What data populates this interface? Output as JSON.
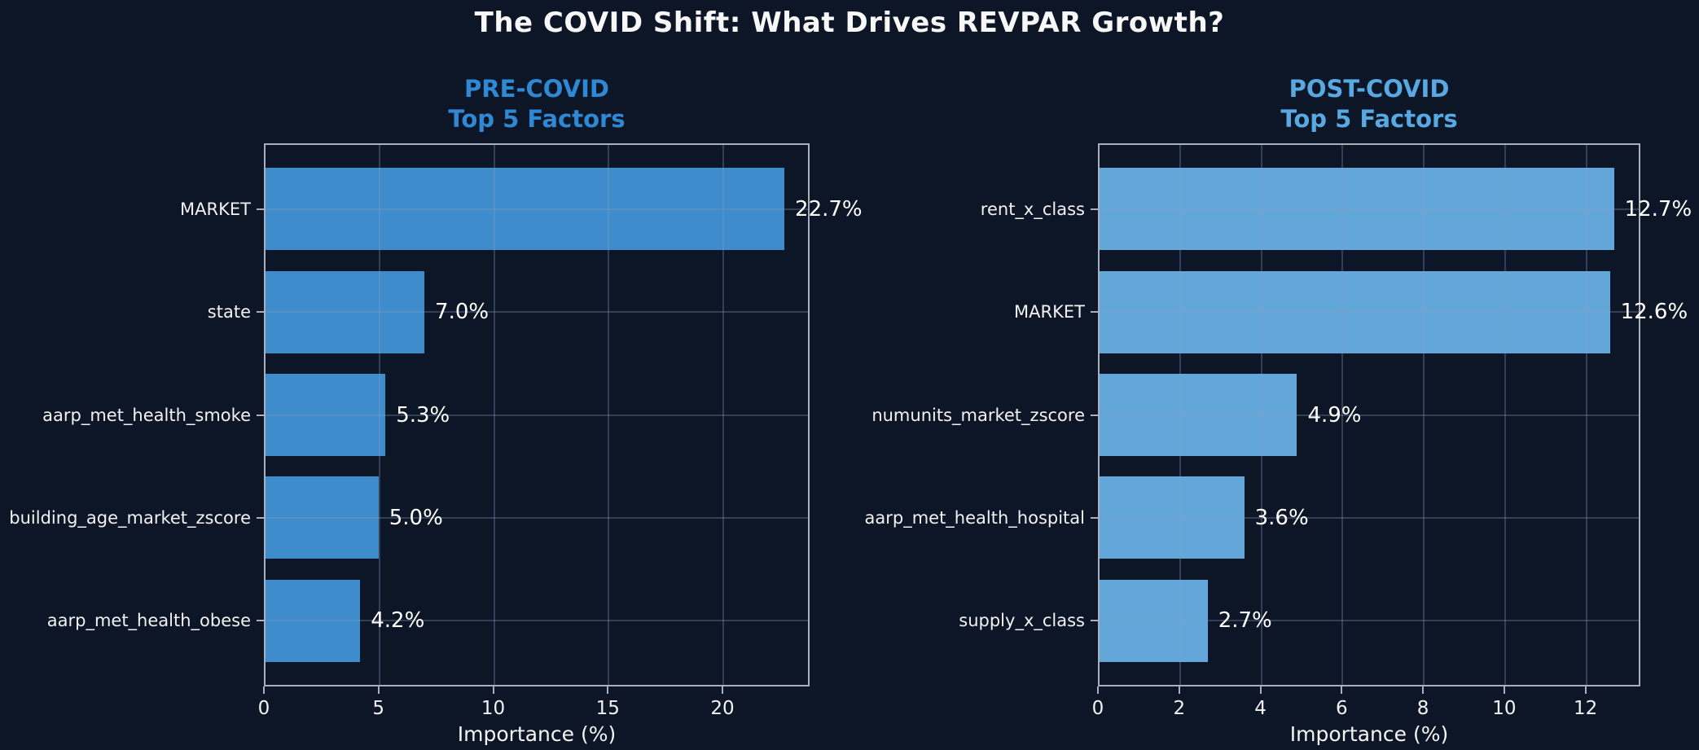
{
  "title": "The COVID Shift: What Drives REVPAR Growth?",
  "colors": {
    "background": "#0d1626",
    "spine": "#a9b0bb",
    "grid": "rgba(135,158,192,0.30)",
    "tick_text": "#f2f2f2",
    "value_text": "#ffffff"
  },
  "chart_data": [
    {
      "type": "bar",
      "orientation": "horizontal",
      "title": "PRE-COVID\nTop 5 Factors",
      "title_color": "#2f88d4",
      "bar_color": "#3e8ccb",
      "categories": [
        "MARKET",
        "state",
        "aarp_met_health_smoke",
        "building_age_market_zscore",
        "aarp_met_health_obese"
      ],
      "values": [
        22.7,
        7.0,
        5.3,
        5.0,
        4.2
      ],
      "value_labels": [
        "22.7%",
        "7.0%",
        "5.3%",
        "5.0%",
        "4.2%"
      ],
      "xlabel": "Importance (%)",
      "xticks": [
        0,
        5,
        10,
        15,
        20
      ],
      "xlim": [
        0,
        23.8
      ],
      "grid": true,
      "legend": false
    },
    {
      "type": "bar",
      "orientation": "horizontal",
      "title": "POST-COVID\nTop 5 Factors",
      "title_color": "#58a8e2",
      "bar_color": "#63a6d9",
      "categories": [
        "rent_x_class",
        "MARKET",
        "numunits_market_zscore",
        "aarp_met_health_hospital",
        "supply_x_class"
      ],
      "values": [
        12.7,
        12.6,
        4.9,
        3.6,
        2.7
      ],
      "value_labels": [
        "12.7%",
        "12.6%",
        "4.9%",
        "3.6%",
        "2.7%"
      ],
      "xlabel": "Importance (%)",
      "xticks": [
        0,
        2,
        4,
        6,
        8,
        10,
        12
      ],
      "xlim": [
        0,
        13.35
      ],
      "grid": true,
      "legend": false
    }
  ]
}
